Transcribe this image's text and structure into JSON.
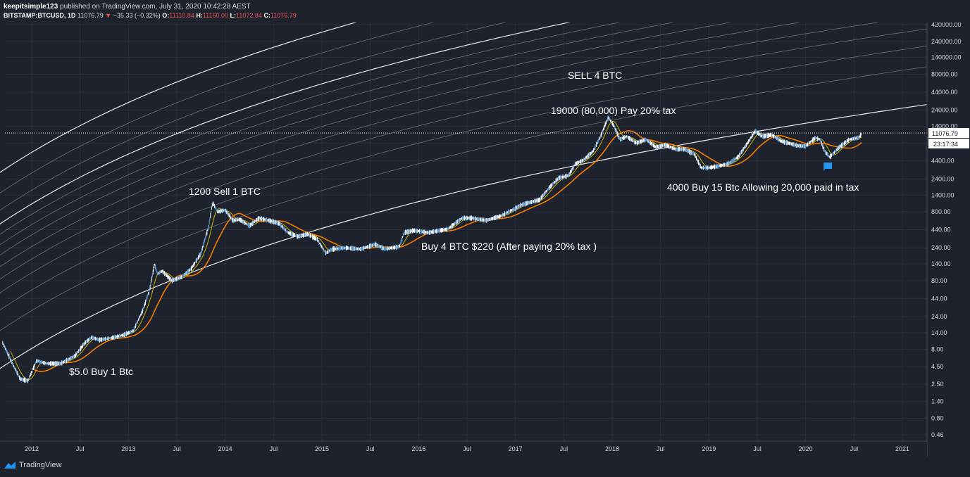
{
  "header": {
    "author": "keepitsimple123",
    "published": "published on TradingView.com, July 31, 2020 10:42:28 AEST",
    "symbol": "BITSTAMP:BTCUSD, 1D",
    "last": "11076.79",
    "change_arrow": "▼",
    "change": "−35.33 (−0.32%)",
    "o_label": "O:",
    "o_value": "11110.84",
    "h_label": "H:",
    "h_value": "11160.00",
    "l_label": "L:",
    "l_value": "11072.84",
    "c_label": "C:",
    "c_value": "11076.79"
  },
  "footer": {
    "brand": "TradingView"
  },
  "colors": {
    "background": "#1e222d",
    "grid": "#2a2e39",
    "candle_up": "#ffffff",
    "candle_down": "#5b9bd5",
    "ma_orange": "#f57c00",
    "ma_yellow": "#c8b400",
    "price_line": "#ffffff",
    "flag": "#2196f3"
  },
  "chart_data": {
    "type": "line",
    "scale": "log",
    "title": "BITSTAMP:BTCUSD, 1D",
    "price_axis_ticks": [
      "420000.00",
      "240000.00",
      "140000.00",
      "80000.00",
      "44000.00",
      "24000.00",
      "14000.00",
      "8000.00",
      "4400.00",
      "2400.00",
      "1400.00",
      "800.00",
      "440.00",
      "240.00",
      "140.00",
      "80.00",
      "44.00",
      "24.00",
      "14.00",
      "8.00",
      "4.50",
      "2.50",
      "1.40",
      "0.80",
      "0.46"
    ],
    "time_axis_ticks": [
      "2012",
      "Jul",
      "2013",
      "Jul",
      "2014",
      "Jul",
      "2015",
      "Jul",
      "2016",
      "Jul",
      "2017",
      "Jul",
      "2018",
      "Jul",
      "2019",
      "Jul",
      "2020",
      "Jul",
      "2021"
    ],
    "current_price_label": "11076.79",
    "countdown_label": "23:17:34",
    "series": [
      {
        "name": "BTCUSD price",
        "x": [
          2011.7,
          2011.8,
          2011.88,
          2011.96,
          2012.05,
          2012.15,
          2012.3,
          2012.45,
          2012.55,
          2012.62,
          2012.7,
          2012.85,
          2012.95,
          2013.05,
          2013.15,
          2013.22,
          2013.27,
          2013.3,
          2013.35,
          2013.45,
          2013.55,
          2013.65,
          2013.75,
          2013.83,
          2013.87,
          2013.92,
          2014.0,
          2014.08,
          2014.15,
          2014.25,
          2014.35,
          2014.45,
          2014.55,
          2014.65,
          2014.75,
          2014.85,
          2014.95,
          2015.04,
          2015.1,
          2015.25,
          2015.4,
          2015.55,
          2015.65,
          2015.8,
          2015.85,
          2015.95,
          2016.1,
          2016.3,
          2016.45,
          2016.55,
          2016.7,
          2016.85,
          2017.0,
          2017.05,
          2017.15,
          2017.25,
          2017.35,
          2017.45,
          2017.55,
          2017.62,
          2017.7,
          2017.8,
          2017.88,
          2017.93,
          2017.96,
          2018.02,
          2018.08,
          2018.15,
          2018.25,
          2018.35,
          2018.45,
          2018.55,
          2018.65,
          2018.75,
          2018.85,
          2018.92,
          2019.0,
          2019.1,
          2019.2,
          2019.3,
          2019.4,
          2019.48,
          2019.55,
          2019.65,
          2019.75,
          2019.82,
          2019.92,
          2020.0,
          2020.1,
          2020.15,
          2020.2,
          2020.25,
          2020.35,
          2020.45,
          2020.55,
          2020.58
        ],
        "values": [
          10,
          5,
          3,
          2.8,
          5.5,
          5,
          5,
          6.5,
          10,
          12,
          11,
          12,
          13,
          15,
          30,
          60,
          140,
          100,
          110,
          80,
          90,
          120,
          200,
          500,
          1100,
          800,
          850,
          600,
          620,
          500,
          650,
          600,
          550,
          400,
          350,
          380,
          320,
          200,
          230,
          240,
          230,
          270,
          230,
          250,
          400,
          430,
          400,
          450,
          650,
          650,
          600,
          700,
          900,
          1000,
          1100,
          1200,
          1800,
          2500,
          2700,
          4000,
          4500,
          6000,
          10000,
          15000,
          19000,
          14000,
          9000,
          10000,
          8000,
          9000,
          7000,
          7500,
          6500,
          6500,
          5500,
          3500,
          3500,
          3700,
          4000,
          5000,
          8000,
          12000,
          10000,
          10500,
          8500,
          8000,
          7300,
          7200,
          9500,
          9000,
          6000,
          5000,
          7000,
          9000,
          9600,
          11076.79
        ]
      }
    ],
    "annotations": [
      "SELL 4 BTC",
      "19000  (80,000) Pay 20%  tax",
      "1200 Sell 1 BTC",
      "4000 Buy 15 Btc  Allowing 20,000 paid in tax",
      "Buy 4 BTC $220 (After paying 20%  tax )",
      "$5.0  Buy 1 Btc"
    ]
  }
}
